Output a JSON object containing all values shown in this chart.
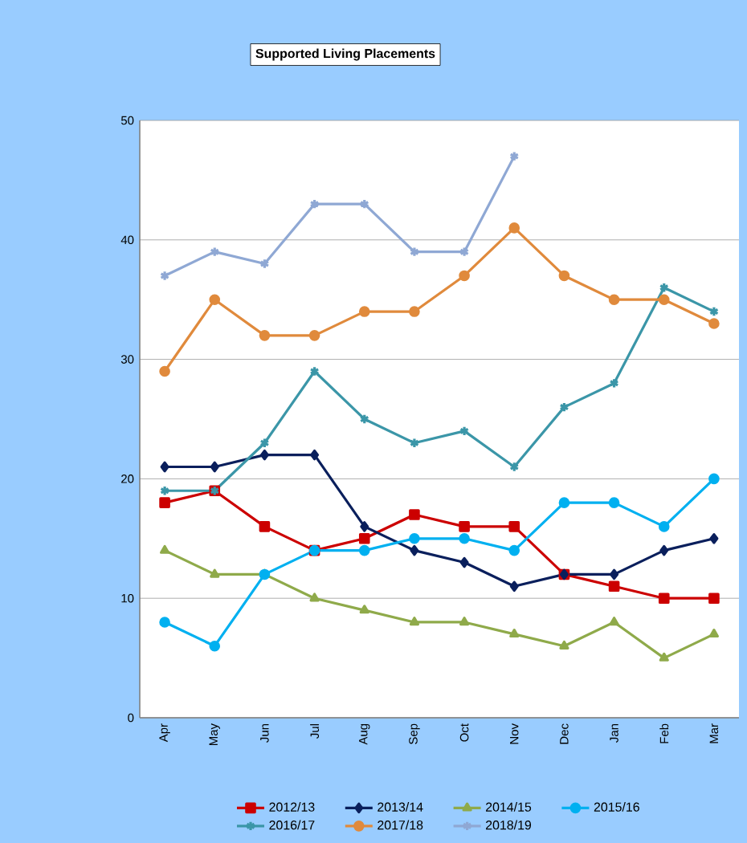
{
  "chart_data": {
    "type": "line",
    "title": "Supported Living Placements",
    "categories": [
      "Apr",
      "May",
      "Jun",
      "Jul",
      "Aug",
      "Sep",
      "Oct",
      "Nov",
      "Dec",
      "Jan",
      "Feb",
      "Mar"
    ],
    "series": [
      {
        "name": "2012/13",
        "color": "#cc0000",
        "marker": "square",
        "values": [
          18,
          19,
          16,
          14,
          15,
          17,
          16,
          16,
          12,
          11,
          10,
          10
        ]
      },
      {
        "name": "2013/14",
        "color": "#0a1f5c",
        "marker": "diamond",
        "values": [
          21,
          21,
          22,
          22,
          16,
          14,
          13,
          11,
          12,
          12,
          14,
          15
        ]
      },
      {
        "name": "2014/15",
        "color": "#8faa4a",
        "marker": "triangle",
        "values": [
          14,
          12,
          12,
          10,
          9,
          8,
          8,
          7,
          6,
          8,
          5,
          7
        ]
      },
      {
        "name": "2015/16",
        "color": "#00b0f0",
        "marker": "circle",
        "values": [
          8,
          6,
          12,
          14,
          14,
          15,
          15,
          14,
          18,
          18,
          16,
          20
        ]
      },
      {
        "name": "2016/17",
        "color": "#3b96a8",
        "marker": "cross",
        "values": [
          19,
          19,
          23,
          29,
          25,
          23,
          24,
          21,
          26,
          28,
          36,
          34
        ]
      },
      {
        "name": "2017/18",
        "color": "#e08a3c",
        "marker": "circle",
        "values": [
          29,
          35,
          32,
          32,
          34,
          34,
          37,
          41,
          37,
          35,
          35,
          33
        ]
      },
      {
        "name": "2018/19",
        "color": "#8fa8d4",
        "marker": "cross",
        "values": [
          37,
          39,
          38,
          43,
          43,
          39,
          39,
          47,
          null,
          null,
          null,
          null
        ]
      }
    ],
    "ylim": [
      0,
      50
    ],
    "yticks": [
      0,
      10,
      20,
      30,
      40,
      50
    ],
    "grid": "y",
    "legend": "bottom",
    "line_style": "solid"
  }
}
